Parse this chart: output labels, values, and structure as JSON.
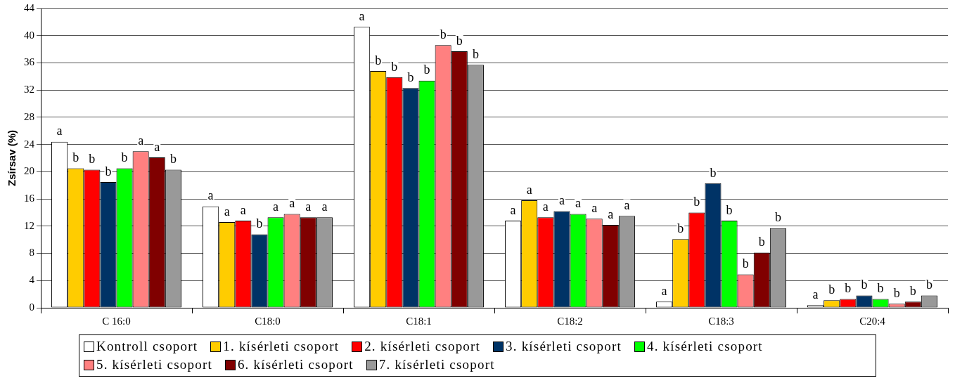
{
  "chart_data": {
    "type": "bar",
    "ylabel": "Zsírsav (%)",
    "categories": [
      "C 16:0",
      "C18:0",
      "C18:1",
      "C18:2",
      "C18:3",
      "C20:4"
    ],
    "series": [
      {
        "name": "Kontroll csoport",
        "color": "#ffffff",
        "values": [
          24.4,
          14.9,
          41.3,
          12.8,
          0.9,
          0.4
        ],
        "value_labels": [
          "a",
          "a",
          "a",
          "a",
          "a",
          "a"
        ]
      },
      {
        "name": "1. kísérleti csoport",
        "color": "#ffcc00",
        "values": [
          20.5,
          12.6,
          34.8,
          15.8,
          10.1,
          1.1
        ],
        "value_labels": [
          "b",
          "a",
          "b",
          "a",
          "b",
          "b"
        ]
      },
      {
        "name": "2. kísérleti csoport",
        "color": "#ff0000",
        "values": [
          20.3,
          12.8,
          33.9,
          13.3,
          14.0,
          1.3
        ],
        "value_labels": [
          "b",
          "a",
          "b",
          "a",
          "b",
          "b"
        ]
      },
      {
        "name": "3. kísérleti csoport",
        "color": "#003366",
        "values": [
          18.5,
          10.8,
          32.3,
          14.2,
          18.3,
          1.8
        ],
        "value_labels": [
          "b",
          "b",
          "b",
          "a",
          "b",
          "b"
        ]
      },
      {
        "name": "4. kísérleti csoport",
        "color": "#00ff00",
        "values": [
          20.5,
          13.3,
          33.4,
          13.8,
          12.8,
          1.3
        ],
        "value_labels": [
          "b",
          "a",
          "b",
          "a",
          "b",
          "b"
        ]
      },
      {
        "name": "5. kísérleti csoport",
        "color": "#ff8080",
        "values": [
          23.0,
          13.8,
          38.6,
          13.1,
          4.9,
          0.6
        ],
        "value_labels": [
          "a",
          "a",
          "b",
          "a",
          "b",
          "b"
        ]
      },
      {
        "name": "6. kísérleti csoport",
        "color": "#800000",
        "values": [
          22.1,
          13.3,
          37.7,
          12.2,
          8.1,
          0.9
        ],
        "value_labels": [
          "a",
          "a",
          "b",
          "a",
          "b",
          "b"
        ]
      },
      {
        "name": "7. kísérleti csoport",
        "color": "#999999",
        "values": [
          20.3,
          13.3,
          35.7,
          13.5,
          11.7,
          1.8
        ],
        "value_labels": [
          "b",
          "a",
          "b",
          "a",
          "b",
          "b"
        ]
      }
    ],
    "ylim": [
      0,
      44
    ],
    "yticks": [
      0,
      4,
      8,
      12,
      16,
      20,
      24,
      28,
      32,
      36,
      40,
      44
    ],
    "grid": "y",
    "legend": "bottom"
  }
}
